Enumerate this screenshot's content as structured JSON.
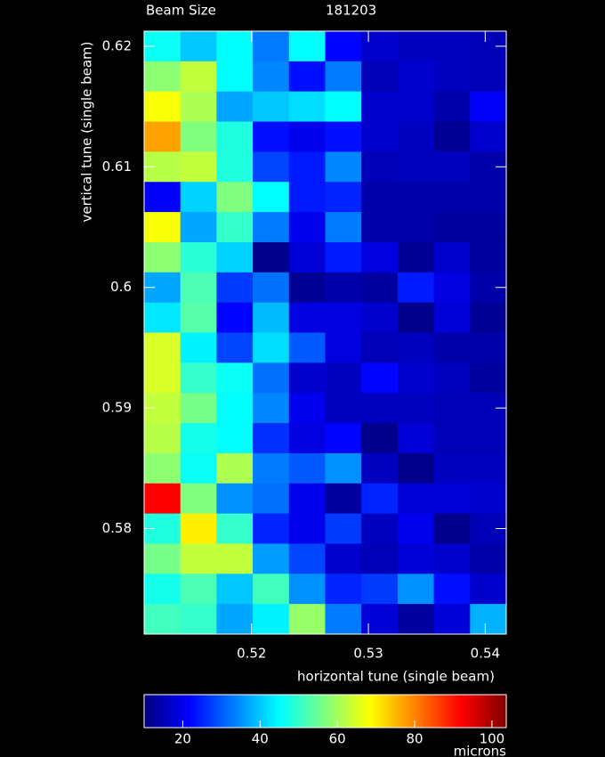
{
  "chart_data": {
    "type": "heatmap",
    "title": "Beam Size",
    "subtitle": "181203",
    "x_label": "horizontal tune (single beam)",
    "y_label": "vertical tune (single beam)",
    "xlim": [
      0.5108,
      0.5418
    ],
    "ylim": [
      0.57125,
      0.62125
    ],
    "xticks": [
      0.52,
      0.53,
      0.54
    ],
    "yticks": [
      0.58,
      0.59,
      0.6,
      0.61,
      0.62
    ],
    "colormap": "jet",
    "clim": [
      10,
      103.7
    ],
    "cticks": [
      20,
      40,
      60,
      80,
      100
    ],
    "colorbar_label": "microns",
    "z": [
      [
        46,
        40,
        45,
        33,
        45,
        22,
        17,
        16,
        16,
        15
      ],
      [
        58,
        63,
        45,
        34,
        23,
        33,
        15,
        17,
        16,
        15
      ],
      [
        68,
        61,
        37,
        40,
        42,
        45,
        17,
        17,
        14,
        21
      ],
      [
        77,
        57,
        48,
        23,
        20,
        23,
        17,
        16,
        12,
        17
      ],
      [
        62,
        63,
        48,
        28,
        24,
        34,
        15,
        16,
        16,
        14
      ],
      [
        21,
        41,
        57,
        45,
        24,
        25,
        14,
        14,
        14,
        14
      ],
      [
        68,
        37,
        50,
        33,
        20,
        33,
        14,
        14,
        13,
        13
      ],
      [
        58,
        49,
        41,
        11,
        18,
        24,
        19,
        12,
        17,
        13
      ],
      [
        37,
        52,
        27,
        32,
        12,
        14,
        13,
        24,
        19,
        14
      ],
      [
        43,
        53,
        22,
        39,
        19,
        19,
        17,
        11,
        18,
        12
      ],
      [
        65,
        44,
        28,
        42,
        30,
        19,
        15,
        16,
        14,
        14
      ],
      [
        65,
        50,
        46,
        32,
        17,
        16,
        22,
        17,
        16,
        13
      ],
      [
        63,
        56,
        45,
        34,
        20,
        16,
        16,
        16,
        15,
        15
      ],
      [
        62,
        47,
        45,
        26,
        19,
        22,
        11,
        18,
        15,
        15
      ],
      [
        58,
        46,
        61,
        33,
        30,
        35,
        16,
        11,
        16,
        16
      ],
      [
        92,
        57,
        35,
        32,
        20,
        13,
        25,
        18,
        18,
        17
      ],
      [
        48,
        70,
        50,
        25,
        20,
        27,
        16,
        20,
        11,
        15
      ],
      [
        56,
        63,
        63,
        36,
        28,
        17,
        15,
        18,
        17,
        14
      ],
      [
        47,
        52,
        40,
        51,
        35,
        25,
        27,
        35,
        23,
        17
      ],
      [
        51,
        50,
        37,
        44,
        59,
        33,
        18,
        13,
        18,
        38
      ]
    ]
  }
}
